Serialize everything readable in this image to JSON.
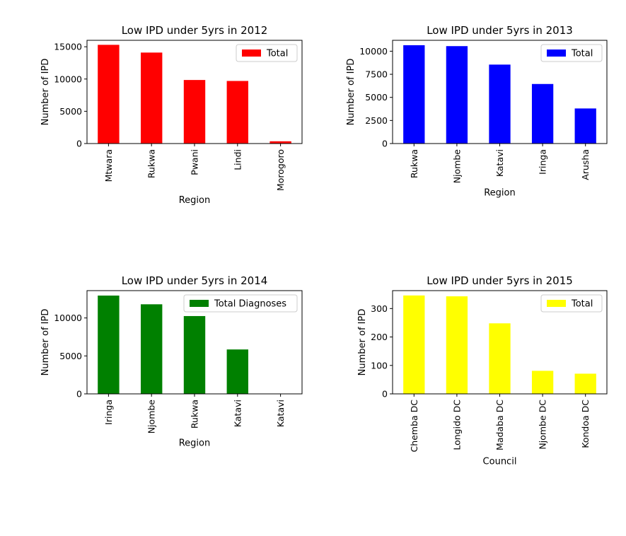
{
  "chart_data": [
    {
      "type": "bar",
      "title": "Low IPD under 5yrs in 2012",
      "xlabel": "Region",
      "ylabel": "Number of IPD",
      "categories": [
        "Mtwara",
        "Rukwa",
        "Pwani",
        "Lindi",
        "Morogoro"
      ],
      "series": [
        {
          "name": "Total",
          "values": [
            15300,
            14100,
            9850,
            9700,
            350
          ]
        }
      ],
      "color": "#ff0000",
      "ylim": [
        0,
        16000
      ],
      "yticks": [
        0,
        5000,
        10000,
        15000
      ],
      "ytick_labels": [
        "0",
        "5000",
        "10000",
        "15000"
      ],
      "legend": "top-right",
      "grid": false
    },
    {
      "type": "bar",
      "title": "Low IPD under 5yrs in 2013",
      "xlabel": "Region",
      "ylabel": "Number of IPD",
      "categories": [
        "Rukwa",
        "Njombe",
        "Katavi",
        "Iringa",
        "Arusha"
      ],
      "series": [
        {
          "name": "Total",
          "values": [
            10650,
            10550,
            8550,
            6450,
            3800
          ]
        }
      ],
      "color": "#0000ff",
      "ylim": [
        0,
        11180
      ],
      "yticks": [
        0,
        2500,
        5000,
        7500,
        10000
      ],
      "ytick_labels": [
        "0",
        "2500",
        "5000",
        "7500",
        "10000"
      ],
      "legend": "top-right",
      "grid": false
    },
    {
      "type": "bar",
      "title": "Low IPD under 5yrs in 2014",
      "xlabel": "Region",
      "ylabel": "Number of IPD",
      "categories": [
        "Iringa",
        "Njombe",
        "Rukwa",
        "Katavi",
        "Katavi"
      ],
      "series": [
        {
          "name": "Total Diagnoses",
          "values": [
            12950,
            11800,
            10250,
            5850,
            0
          ]
        }
      ],
      "color": "#008000",
      "ylim": [
        0,
        13600
      ],
      "yticks": [
        0,
        5000,
        10000
      ],
      "ytick_labels": [
        "0",
        "5000",
        "10000"
      ],
      "legend": "top-right",
      "grid": false
    },
    {
      "type": "bar",
      "title": "Low IPD under 5yrs in 2015",
      "xlabel": "Council",
      "ylabel": "Number of IPD",
      "categories": [
        "Chemba DC",
        "Longido DC",
        "Madaba DC",
        "Njombe DC",
        "Kondoa DC"
      ],
      "series": [
        {
          "name": "Total",
          "values": [
            346,
            343,
            248,
            81,
            71
          ]
        }
      ],
      "color": "#ffff00",
      "ylim": [
        0,
        363
      ],
      "yticks": [
        0,
        100,
        200,
        300
      ],
      "ytick_labels": [
        "0",
        "100",
        "200",
        "300"
      ],
      "legend": "top-right",
      "grid": false
    }
  ]
}
